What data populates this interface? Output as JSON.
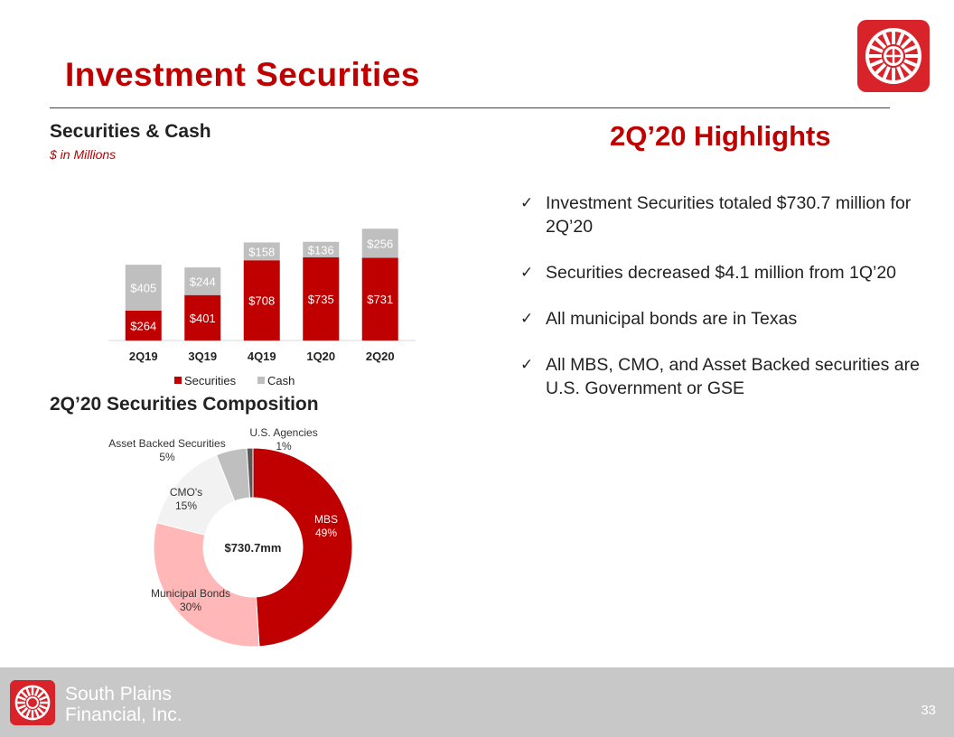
{
  "slide": {
    "title": "Investment Securities",
    "page_number": "33"
  },
  "securities_chart": {
    "title": "Securities & Cash",
    "subtitle": "$ in Millions"
  },
  "composition": {
    "title": "2Q’20 Securities Composition",
    "center_label": "$730.7mm"
  },
  "highlights": {
    "title": "2Q’20 Highlights",
    "bullets": [
      "Investment Securities totaled $730.7 million for 2Q’20",
      "Securities decreased $4.1 million from 1Q’20",
      "All municipal bonds are in Texas",
      "All MBS, CMO, and Asset Backed securities are U.S. Government or GSE"
    ]
  },
  "footer": {
    "company_line1": "South Plains",
    "company_line2": "Financial, Inc."
  },
  "colors": {
    "brand_red": "#c00000",
    "cash_gray": "#bfbfbf",
    "footer_gray": "#c8c8c8"
  },
  "chart_data": [
    {
      "type": "bar",
      "stacked": true,
      "categories": [
        "2Q19",
        "3Q19",
        "4Q19",
        "1Q20",
        "2Q20"
      ],
      "series": [
        {
          "name": "Securities",
          "values": [
            264,
            401,
            708,
            735,
            731
          ],
          "labels": [
            "$264",
            "$401",
            "$708",
            "$735",
            "$731"
          ],
          "color": "#c00000"
        },
        {
          "name": "Cash",
          "values": [
            405,
            244,
            158,
            136,
            256
          ],
          "labels": [
            "$405",
            "$244",
            "$158",
            "$136",
            "$256"
          ],
          "color": "#bfbfbf"
        }
      ],
      "title": "Securities & Cash",
      "legend_position": "bottom",
      "grid": false
    },
    {
      "type": "pie",
      "donut": true,
      "slices": [
        {
          "name": "MBS",
          "value": 49,
          "label": "49%",
          "color": "#c00000"
        },
        {
          "name": "Municipal Bonds",
          "value": 30,
          "label": "30%",
          "color": "#ffb7b7"
        },
        {
          "name": "CMO's",
          "value": 15,
          "label": "15%",
          "color": "#f2f2f2"
        },
        {
          "name": "Asset Backed Securities",
          "value": 5,
          "label": "5%",
          "color": "#bfbfbf"
        },
        {
          "name": "U.S. Agencies",
          "value": 1,
          "label": "1%",
          "color": "#595959"
        }
      ],
      "center_label": "$730.7mm"
    }
  ]
}
